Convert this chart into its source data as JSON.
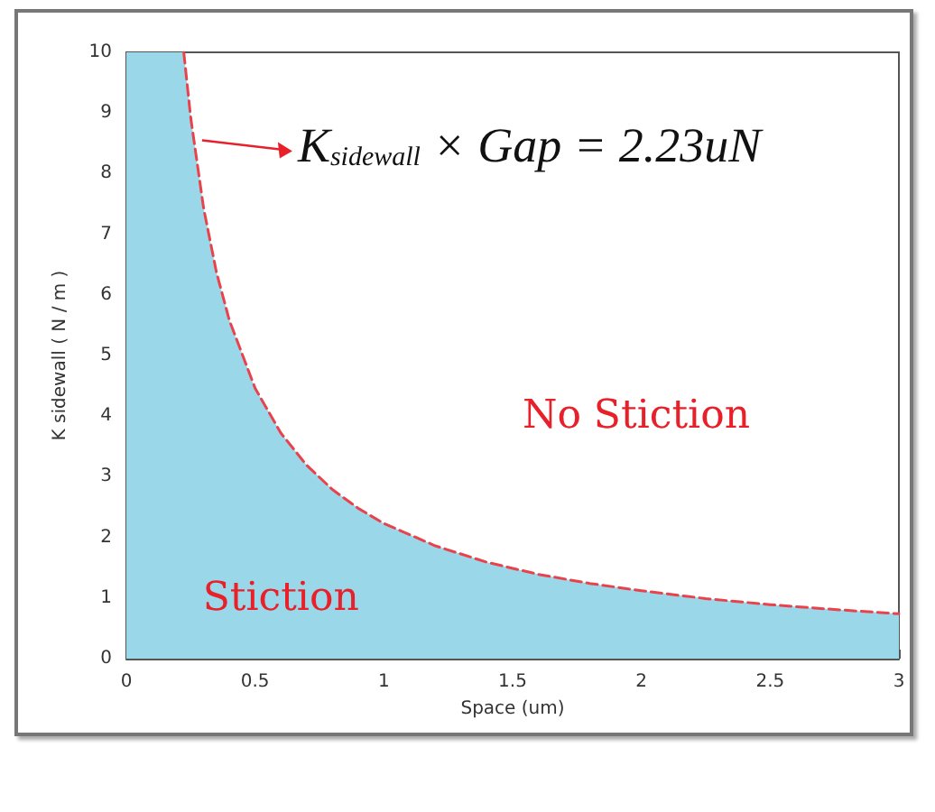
{
  "chart_data": {
    "type": "line",
    "xlabel": "Space (um)",
    "ylabel": "K sidewall ( N / m )",
    "xlim": [
      0,
      3
    ],
    "xticks": [
      0,
      0.5,
      1,
      1.5,
      2,
      2.5,
      3
    ],
    "ylim": [
      0,
      10
    ],
    "yticks": [
      0,
      1,
      2,
      3,
      4,
      5,
      6,
      7,
      8,
      9,
      10
    ],
    "grid": false,
    "marker": "none",
    "series": [
      {
        "type": "area",
        "color": "#9ad8e9",
        "x": [
          0,
          0.223,
          0.25,
          0.3,
          0.35,
          0.4,
          0.5,
          0.6,
          0.7,
          0.8,
          0.9,
          1.0,
          1.2,
          1.4,
          1.6,
          1.8,
          2.0,
          2.25,
          2.5,
          2.75,
          3.0
        ],
        "values": [
          10,
          10,
          8.92,
          7.43,
          6.37,
          5.58,
          4.46,
          3.72,
          3.19,
          2.79,
          2.48,
          2.23,
          1.86,
          1.59,
          1.39,
          1.24,
          1.12,
          0.99,
          0.89,
          0.81,
          0.74
        ]
      },
      {
        "color": "#e8434c",
        "line_style": "dashed",
        "x": [
          0.223,
          0.25,
          0.3,
          0.35,
          0.4,
          0.5,
          0.6,
          0.7,
          0.8,
          0.9,
          1.0,
          1.2,
          1.4,
          1.6,
          1.8,
          2.0,
          2.25,
          2.5,
          2.75,
          3.0
        ],
        "values": [
          10,
          8.92,
          7.43,
          6.37,
          5.58,
          4.46,
          3.72,
          3.19,
          2.79,
          2.48,
          2.23,
          1.86,
          1.59,
          1.39,
          1.24,
          1.12,
          0.99,
          0.89,
          0.81,
          0.74
        ]
      }
    ],
    "annotations": [
      {
        "text": "K$_{sidewall}$ × Gap = 2.23uN",
        "x": 0.28,
        "y": 8.55
      },
      "No Stiction",
      "Stiction"
    ]
  }
}
